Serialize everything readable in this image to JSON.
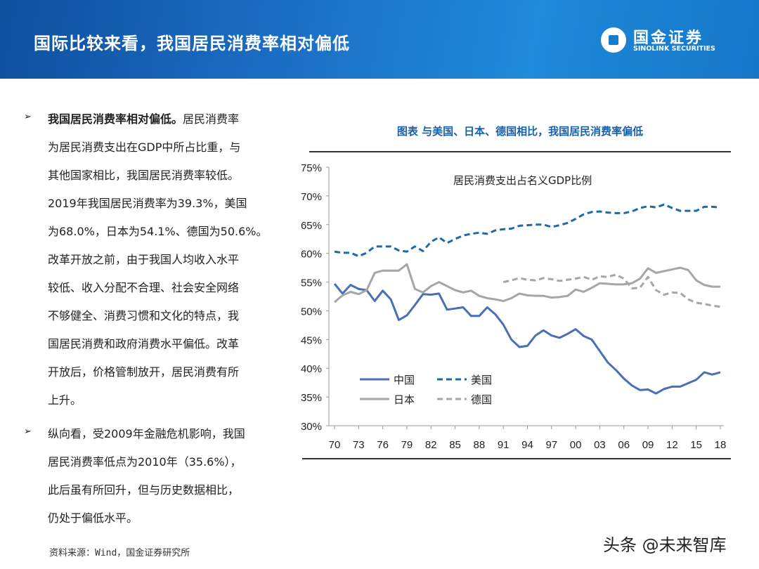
{
  "header": {
    "title": "国际比较来看，我国居民消费率相对偏低",
    "logo_cn": "国金证券",
    "logo_en": "SINOLINK SECURITIES"
  },
  "text": {
    "bullet_icon": "arrow-bullet",
    "bullet_symbol": "➢",
    "paragraphs": [
      {
        "lines": [
          {
            "bold": "我国居民消费率相对偏低。",
            "rest": "居民消费率"
          },
          {
            "bold": "",
            "rest": "为居民消费支出在GDP中所占比重，与"
          },
          {
            "bold": "",
            "rest": "其他国家相比，我国居民消费率较低。"
          },
          {
            "bold": "",
            "rest": "2019年我国居民消费率为39.3%，美国"
          },
          {
            "bold": "",
            "rest": "为68.0%，日本为54.1%、德国为50.6%。"
          },
          {
            "bold": "",
            "rest": "改革开放之前，由于我国人均收入水平"
          },
          {
            "bold": "",
            "rest": "较低、收入分配不合理、社会安全网络"
          },
          {
            "bold": "",
            "rest": "不够健全、消费习惯和文化的特点，我"
          },
          {
            "bold": "",
            "rest": "国居民消费和政府消费水平偏低。改革"
          },
          {
            "bold": "",
            "rest": "开放后，价格管制放开，居民消费有所"
          },
          {
            "bold": "",
            "rest": "上升。"
          }
        ]
      },
      {
        "lines": [
          {
            "bold": "",
            "rest": "纵向看，受2009年金融危机影响，我国"
          },
          {
            "bold": "",
            "rest": "居民消费率低点为2010年（35.6%），"
          },
          {
            "bold": "",
            "rest": "此后虽有所回升，但与历史数据相比，"
          },
          {
            "bold": "",
            "rest": "仍处于偏低水平。"
          }
        ]
      }
    ]
  },
  "source": "资料来源：Wind，国金证券研究所",
  "watermark": "头条 @未来智库",
  "chart_data": {
    "type": "line",
    "title": "图表  与美国、日本、德国相比，我国居民消费率偏低",
    "subtitle": "居民消费支出占名义GDP比例",
    "xlabel": "",
    "ylabel": "",
    "x_start": 1970,
    "x_end": 2018,
    "x_ticks": [
      "70",
      "73",
      "76",
      "79",
      "82",
      "85",
      "88",
      "91",
      "94",
      "97",
      "00",
      "03",
      "06",
      "09",
      "12",
      "15",
      "18"
    ],
    "y_ticks": [
      "75%",
      "70%",
      "65%",
      "60%",
      "55%",
      "50%",
      "45%",
      "40%",
      "35%",
      "30%"
    ],
    "ylim": [
      30,
      75
    ],
    "unit": "%",
    "grid": false,
    "legend_placement": "bottom-left",
    "series": [
      {
        "name": "中国",
        "color": "#4a6fb5",
        "dash": "solid",
        "start": 1970,
        "values": [
          54.7,
          53.0,
          54.5,
          53.8,
          53.6,
          51.7,
          53.5,
          52.0,
          48.4,
          49.2,
          51.0,
          52.9,
          52.8,
          53.0,
          50.2,
          50.4,
          50.6,
          49.1,
          49.1,
          50.6,
          49.4,
          47.6,
          45.0,
          43.7,
          43.9,
          45.7,
          46.6,
          45.7,
          45.3,
          46.0,
          46.8,
          45.6,
          45.0,
          43.0,
          41.0,
          39.7,
          38.2,
          37.0,
          36.2,
          36.3,
          35.6,
          36.4,
          36.8,
          36.8,
          37.4,
          38.0,
          39.3,
          38.9,
          39.3
        ]
      },
      {
        "name": "美国",
        "color": "#1f6aa5",
        "dash": "dashed",
        "start": 1970,
        "values": [
          60.3,
          60.1,
          60.1,
          59.5,
          60.1,
          61.2,
          61.2,
          61.2,
          60.5,
          60.3,
          61.2,
          60.4,
          62.0,
          62.8,
          61.8,
          62.5,
          63.1,
          63.4,
          63.6,
          63.4,
          64.0,
          64.2,
          64.3,
          64.8,
          64.9,
          65.0,
          65.0,
          64.6,
          64.9,
          65.3,
          66.0,
          66.8,
          67.2,
          67.3,
          67.1,
          67.0,
          67.0,
          67.3,
          67.9,
          68.2,
          68.0,
          68.5,
          67.9,
          67.4,
          67.4,
          67.4,
          68.1,
          68.1,
          68.0
        ]
      },
      {
        "name": "日本",
        "color": "#a6a6a6",
        "dash": "solid",
        "start": 1970,
        "values": [
          51.5,
          52.7,
          53.3,
          52.9,
          53.6,
          56.6,
          57.0,
          57.0,
          57.0,
          58.1,
          53.8,
          53.2,
          54.3,
          55.0,
          54.3,
          53.6,
          53.2,
          53.5,
          52.6,
          52.2,
          52.0,
          51.7,
          52.2,
          53.0,
          52.7,
          52.6,
          52.6,
          52.3,
          52.4,
          52.6,
          53.7,
          53.3,
          54.0,
          54.8,
          54.7,
          54.6,
          54.6,
          54.8,
          55.6,
          57.4,
          56.6,
          56.9,
          57.2,
          57.5,
          57.1,
          55.3,
          54.5,
          54.2,
          54.2
        ]
      },
      {
        "name": "德国",
        "color": "#a6a6a6",
        "dash": "dashed",
        "start": 1991,
        "values": [
          55.0,
          55.3,
          55.7,
          55.4,
          55.3,
          55.7,
          55.5,
          55.2,
          55.4,
          55.6,
          55.9,
          55.4,
          56.0,
          55.9,
          56.3,
          55.6,
          53.9,
          54.0,
          55.9,
          53.6,
          52.8,
          53.2,
          53.1,
          52.0,
          51.4,
          51.2,
          50.9,
          50.7
        ]
      }
    ]
  }
}
